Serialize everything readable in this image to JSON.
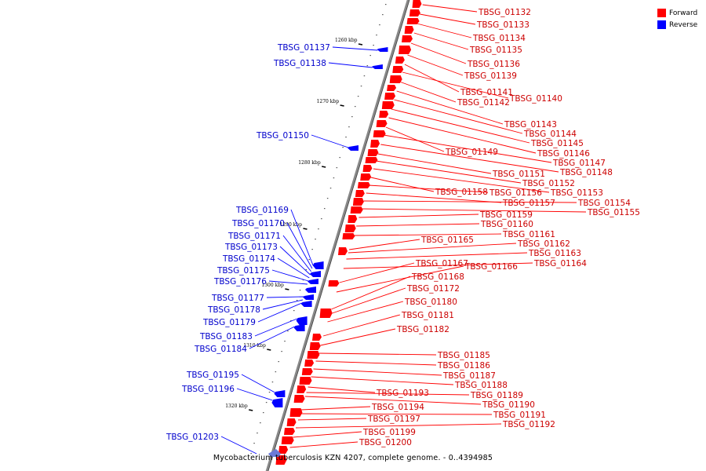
{
  "caption": "Mycobacterium tuberculosis KZN 4207, complete genome. - 0..4394985",
  "legend": {
    "forward_label": "Forward",
    "reverse_label": "Reverse",
    "forward_color": "#ff0000",
    "reverse_color": "#0000ff"
  },
  "scale_ticks": [
    "1260 kbp",
    "1270 kbp",
    "1280 kbp",
    "1290 kbp",
    "1300 kbp",
    "1310 kbp",
    "1320 kbp"
  ],
  "forward_genes": [
    "TBSG_01132",
    "TBSG_01133",
    "TBSG_01134",
    "TBSG_01135",
    "TBSG_01136",
    "TBSG_01139",
    "TBSG_01141",
    "TBSG_01140",
    "TBSG_01142",
    "TBSG_01143",
    "TBSG_01144",
    "TBSG_01145",
    "TBSG_01146",
    "TBSG_01149",
    "TBSG_01147",
    "TBSG_01148",
    "TBSG_01151",
    "TBSG_01152",
    "TBSG_01153",
    "TBSG_01158",
    "TBSG_01156",
    "TBSG_01157",
    "TBSG_01154",
    "TBSG_01155",
    "TBSG_01159",
    "TBSG_01160",
    "TBSG_01161",
    "TBSG_01165",
    "TBSG_01162",
    "TBSG_01163",
    "TBSG_01164",
    "TBSG_01167",
    "TBSG_01166",
    "TBSG_01168",
    "TBSG_01172",
    "TBSG_01180",
    "TBSG_01181",
    "TBSG_01182",
    "TBSG_01185",
    "TBSG_01186",
    "TBSG_01187",
    "TBSG_01188",
    "TBSG_01193",
    "TBSG_01189",
    "TBSG_01190",
    "TBSG_01194",
    "TBSG_01191",
    "TBSG_01197",
    "TBSG_01192",
    "TBSG_01199",
    "TBSG_01200"
  ],
  "reverse_genes": [
    "TBSG_01137",
    "TBSG_01138",
    "TBSG_01150",
    "TBSG_01169",
    "TBSG_01170",
    "TBSG_01171",
    "TBSG_01173",
    "TBSG_01174",
    "TBSG_01175",
    "TBSG_01176",
    "TBSG_01177",
    "TBSG_01178",
    "TBSG_01179",
    "TBSG_01183",
    "TBSG_01184",
    "TBSG_01195",
    "TBSG_01196",
    "TBSG_01203"
  ]
}
